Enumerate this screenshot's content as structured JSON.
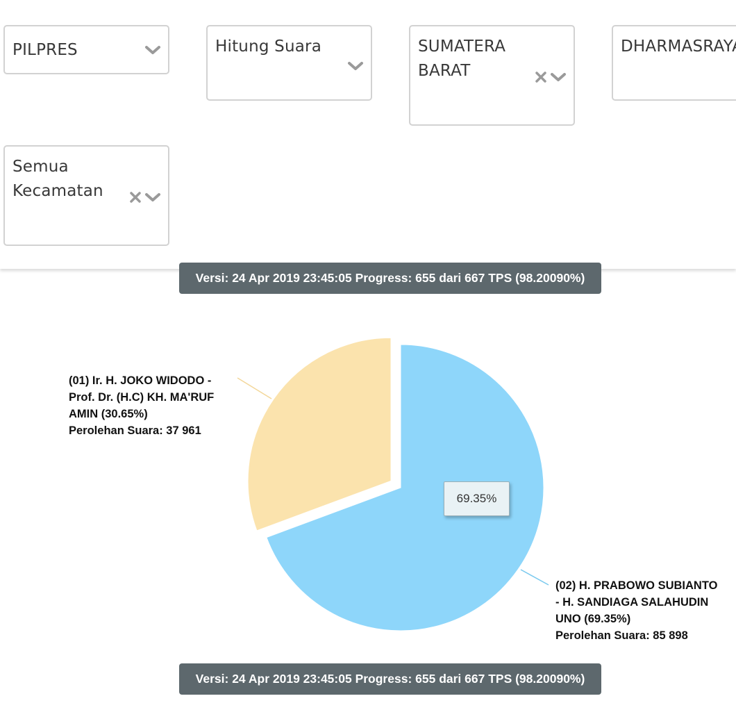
{
  "filters": {
    "election_type": {
      "value": "PILPRES"
    },
    "data_type": {
      "value": "Hitung Suara"
    },
    "province": {
      "value": "SUMATERA BARAT"
    },
    "regency": {
      "value": "DHARMASRAYA"
    },
    "district": {
      "value": "Semua Kecamatan"
    }
  },
  "status": {
    "version_text": "Versi: 24 Apr 2019 23:45:05 Progress: 655 dari 667 TPS (98.20090%)"
  },
  "chart_data": {
    "type": "pie",
    "series": [
      {
        "name": "(01) Ir. H. JOKO WIDODO - Prof. Dr. (H.C) KH. MA'RUF AMIN (30.65%)",
        "label_lines": [
          "(01) Ir. H. JOKO WIDODO -",
          "Prof. Dr. (H.C) KH. MA'RUF",
          "AMIN (30.65%)",
          "Perolehan Suara: 37 961"
        ],
        "percent": 30.65,
        "votes": 37961,
        "color": "#fbe3ad",
        "exploded": true
      },
      {
        "name": "(02) H. PRABOWO SUBIANTO - H. SANDIAGA SALAHUDIN UNO (69.35%)",
        "label_lines": [
          "(02) H. PRABOWO SUBIANTO",
          "- H. SANDIAGA SALAHUDIN",
          "UNO (69.35%)",
          "Perolehan Suara: 85 898"
        ],
        "percent": 69.35,
        "votes": 85898,
        "color": "#8ed6fa",
        "exploded": false
      }
    ],
    "tooltip": "69.35%",
    "slice_border_color": "#ffffff",
    "leader_line_color_1": "#f3d79a",
    "leader_line_color_2": "#79c9ee"
  }
}
